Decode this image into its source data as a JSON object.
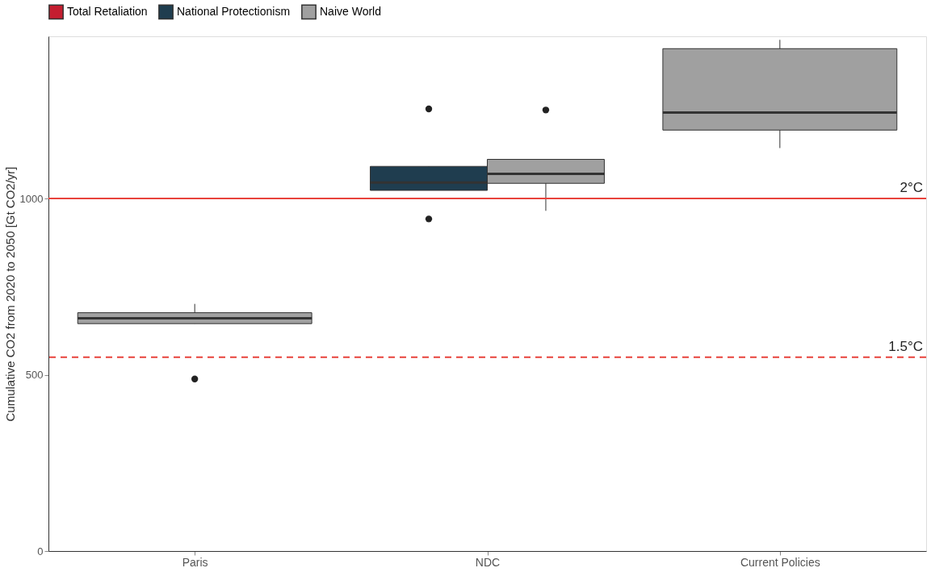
{
  "chart_data": {
    "type": "box",
    "ylabel": "Cumulative CO2 from 2020 to 2050 [Gt CO2/yr]",
    "categories": [
      "Paris",
      "NDC",
      "Current Policies"
    ],
    "series": [
      {
        "name": "Total Retaliation",
        "color": "#c41e30",
        "boxes": [
          null,
          null,
          null
        ]
      },
      {
        "name": "National Protectionism",
        "color": "#1f3d4f",
        "boxes": [
          null,
          {
            "low": 1023,
            "q1": 1023,
            "median": 1045,
            "q3": 1091,
            "high": 1091,
            "outliers": [
              1254,
              942
            ]
          },
          null
        ]
      },
      {
        "name": "Naive World",
        "color": "#a0a0a0",
        "boxes": [
          {
            "low": 645,
            "q1": 645,
            "median": 660,
            "q3": 676,
            "high": 701,
            "outliers": [
              488
            ]
          },
          {
            "low": 965,
            "q1": 1043,
            "median": 1070,
            "q3": 1111,
            "high": 1111,
            "outliers": [
              1251
            ]
          },
          {
            "low": 1143,
            "q1": 1194,
            "median": 1244,
            "q3": 1425,
            "high": 1450
          }
        ]
      }
    ],
    "ylim": [
      0,
      1460
    ],
    "yticks": [
      0,
      500,
      1000
    ],
    "ref_lines": [
      {
        "axis": "y",
        "value": 1000,
        "label": "2°C",
        "color": "#e8433c",
        "line_style": "solid"
      },
      {
        "axis": "y",
        "value": 550,
        "label": "1.5°C",
        "color": "#e8433c",
        "line_style": "dashed"
      }
    ],
    "grid": false,
    "legend": "top"
  }
}
